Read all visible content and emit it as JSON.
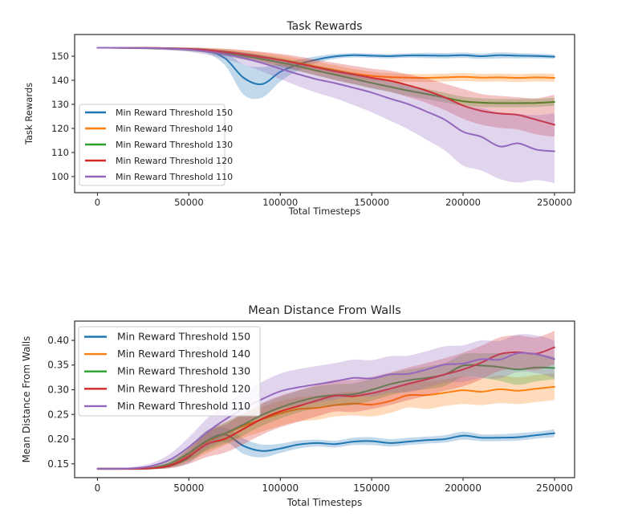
{
  "page": {
    "background": "#ffffff",
    "text_color": "#262626",
    "spine_color": "#3b3b3b",
    "legend_border": "#cccccc"
  },
  "chart_data": [
    {
      "type": "line",
      "title": "Task Rewards",
      "xlabel": "Total Timesteps",
      "ylabel": "Task Rewards",
      "xlim": [
        -12500,
        261000
      ],
      "ylim": [
        93.3,
        159
      ],
      "xticks": [
        0,
        50000,
        100000,
        150000,
        200000,
        250000
      ],
      "yticks": [
        100,
        110,
        120,
        130,
        140,
        150
      ],
      "ytick_decimals": 0,
      "grid": false,
      "legend_position": "lower left",
      "band_opacity": 0.28,
      "x": [
        0,
        10000,
        20000,
        30000,
        40000,
        50000,
        60000,
        70000,
        80000,
        90000,
        100000,
        110000,
        120000,
        130000,
        140000,
        150000,
        160000,
        170000,
        180000,
        190000,
        200000,
        210000,
        220000,
        230000,
        240000,
        250000
      ],
      "series": [
        {
          "name": "Min Reward Threshold 150",
          "color": "#1f77b4",
          "y": [
            153.5,
            153.5,
            153.5,
            153.4,
            153.3,
            153.0,
            152.3,
            149.0,
            141.0,
            138.4,
            143.5,
            146.6,
            148.6,
            149.9,
            150.4,
            150.2,
            150.0,
            150.3,
            150.3,
            150.2,
            150.4,
            150.0,
            150.4,
            150.2,
            150.1,
            149.8
          ],
          "lo": [
            153.2,
            153.2,
            153.1,
            153.0,
            152.8,
            152.3,
            151.2,
            146.0,
            134.0,
            132.8,
            139.5,
            144.2,
            147.2,
            148.9,
            149.5,
            149.3,
            149.1,
            149.4,
            149.2,
            149.1,
            149.3,
            148.9,
            149.1,
            149.1,
            149.1,
            148.9
          ],
          "hi": [
            153.8,
            153.8,
            153.8,
            153.7,
            153.6,
            153.5,
            153.2,
            151.5,
            146.5,
            145.5,
            147.0,
            148.6,
            150.0,
            150.9,
            151.3,
            151.1,
            150.9,
            151.2,
            151.4,
            151.3,
            151.5,
            151.1,
            151.6,
            151.3,
            151.1,
            150.7
          ]
        },
        {
          "name": "Min Reward Threshold 140",
          "color": "#ff7f0e",
          "y": [
            153.5,
            153.5,
            153.4,
            153.3,
            153.2,
            153.0,
            152.6,
            151.9,
            151.0,
            149.9,
            148.5,
            147.1,
            145.6,
            144.2,
            142.8,
            141.8,
            141.3,
            141.1,
            141.0,
            141.2,
            141.4,
            141.1,
            141.2,
            141.0,
            141.2,
            141.0
          ],
          "lo": [
            153.2,
            153.1,
            153.0,
            152.9,
            152.7,
            152.4,
            151.7,
            150.7,
            149.5,
            148.1,
            146.5,
            145.0,
            143.5,
            142.1,
            140.8,
            139.9,
            139.5,
            139.4,
            139.3,
            139.5,
            139.7,
            139.4,
            139.5,
            139.3,
            139.5,
            139.3
          ],
          "hi": [
            153.8,
            153.8,
            153.8,
            153.7,
            153.6,
            153.5,
            153.3,
            153.0,
            152.4,
            151.6,
            150.4,
            149.1,
            147.7,
            146.2,
            144.7,
            143.6,
            142.9,
            142.7,
            142.6,
            142.8,
            143.0,
            142.7,
            142.8,
            142.6,
            142.8,
            142.7
          ]
        },
        {
          "name": "Min Reward Threshold 130",
          "color": "#2ca02c",
          "y": [
            153.5,
            153.5,
            153.4,
            153.3,
            153.1,
            152.8,
            152.2,
            151.3,
            150.1,
            148.8,
            147.4,
            145.8,
            144.0,
            142.3,
            140.6,
            138.9,
            137.3,
            135.7,
            134.3,
            132.8,
            131.3,
            130.7,
            130.5,
            130.5,
            130.6,
            131.0
          ],
          "lo": [
            153.2,
            153.1,
            153.0,
            152.8,
            152.5,
            152.1,
            151.3,
            150.0,
            148.6,
            147.1,
            145.5,
            143.8,
            141.9,
            140.1,
            138.3,
            136.6,
            135.1,
            133.5,
            132.1,
            130.8,
            129.4,
            128.9,
            128.8,
            128.8,
            128.9,
            129.4
          ],
          "hi": [
            153.8,
            153.8,
            153.8,
            153.7,
            153.6,
            153.5,
            153.1,
            152.5,
            151.6,
            150.5,
            149.3,
            147.8,
            146.1,
            144.5,
            142.9,
            141.2,
            139.5,
            137.9,
            136.5,
            134.8,
            133.2,
            132.5,
            132.2,
            132.2,
            132.3,
            132.7
          ]
        },
        {
          "name": "Min Reward Threshold 120",
          "color": "#d62728",
          "y": [
            153.5,
            153.5,
            153.4,
            153.4,
            153.2,
            153.0,
            152.5,
            151.7,
            150.7,
            149.6,
            148.4,
            146.9,
            145.3,
            143.7,
            142.4,
            141.0,
            139.8,
            137.9,
            135.7,
            132.9,
            129.5,
            127.3,
            126.2,
            125.6,
            123.6,
            121.5
          ],
          "lo": [
            153.2,
            153.2,
            153.1,
            153.0,
            152.7,
            152.3,
            151.5,
            150.3,
            148.8,
            147.3,
            145.7,
            143.9,
            142.0,
            140.1,
            138.5,
            136.8,
            135.3,
            133.0,
            130.6,
            127.6,
            124.0,
            121.5,
            120.2,
            119.5,
            117.5,
            116.5
          ],
          "hi": [
            153.8,
            153.8,
            153.8,
            153.8,
            153.7,
            153.6,
            153.4,
            153.1,
            152.5,
            151.8,
            151.0,
            149.9,
            148.5,
            147.2,
            146.0,
            144.8,
            144.0,
            142.4,
            140.8,
            138.6,
            136.4,
            134.3,
            133.5,
            133.0,
            132.5,
            134.0
          ]
        },
        {
          "name": "Min Reward Threshold 110",
          "color": "#9467bd",
          "y": [
            153.5,
            153.5,
            153.4,
            153.3,
            153.1,
            152.7,
            151.9,
            150.8,
            149.2,
            147.2,
            144.8,
            142.5,
            140.4,
            138.8,
            136.9,
            134.9,
            132.4,
            130.1,
            127.0,
            123.6,
            118.6,
            116.5,
            112.5,
            113.8,
            111.2,
            110.5
          ],
          "lo": [
            153.2,
            153.1,
            153.0,
            152.8,
            152.4,
            151.8,
            150.6,
            148.8,
            146.5,
            143.7,
            140.5,
            137.5,
            134.8,
            132.5,
            129.7,
            126.7,
            123.2,
            119.6,
            115.3,
            110.8,
            104.6,
            102.5,
            99.0,
            97.5,
            98.5,
            97.3
          ],
          "hi": [
            153.8,
            153.8,
            153.8,
            153.7,
            153.6,
            153.4,
            153.0,
            152.4,
            151.5,
            150.3,
            148.6,
            146.9,
            145.3,
            144.1,
            142.7,
            141.1,
            139.3,
            137.7,
            135.5,
            132.9,
            129.5,
            128.5,
            126.5,
            126.0,
            125.5,
            126.3
          ]
        }
      ]
    },
    {
      "type": "line",
      "title": "Mean Distance From Walls",
      "xlabel": "Total Timesteps",
      "ylabel": "Mean Distance From Walls",
      "xlim": [
        -12500,
        261000
      ],
      "ylim": [
        0.122,
        0.439
      ],
      "xticks": [
        0,
        50000,
        100000,
        150000,
        200000,
        250000
      ],
      "yticks": [
        0.15,
        0.2,
        0.25,
        0.3,
        0.35,
        0.4
      ],
      "ytick_decimals": 2,
      "grid": false,
      "legend_position": "upper left",
      "band_opacity": 0.28,
      "x": [
        0,
        10000,
        20000,
        30000,
        40000,
        50000,
        60000,
        70000,
        80000,
        90000,
        100000,
        110000,
        120000,
        130000,
        140000,
        150000,
        160000,
        170000,
        180000,
        190000,
        200000,
        210000,
        220000,
        230000,
        240000,
        250000
      ],
      "series": [
        {
          "name": "Min Reward Threshold 150",
          "color": "#1f77b4",
          "y": [
            0.14,
            0.14,
            0.14,
            0.141,
            0.146,
            0.163,
            0.197,
            0.209,
            0.186,
            0.176,
            0.181,
            0.189,
            0.192,
            0.19,
            0.195,
            0.196,
            0.192,
            0.195,
            0.198,
            0.2,
            0.207,
            0.203,
            0.203,
            0.204,
            0.208,
            0.212
          ],
          "lo": [
            0.138,
            0.138,
            0.138,
            0.139,
            0.142,
            0.152,
            0.18,
            0.194,
            0.17,
            0.163,
            0.172,
            0.181,
            0.185,
            0.183,
            0.188,
            0.188,
            0.185,
            0.188,
            0.191,
            0.193,
            0.199,
            0.196,
            0.196,
            0.197,
            0.201,
            0.204
          ],
          "hi": [
            0.142,
            0.142,
            0.142,
            0.143,
            0.151,
            0.174,
            0.214,
            0.223,
            0.201,
            0.189,
            0.191,
            0.197,
            0.199,
            0.197,
            0.203,
            0.204,
            0.2,
            0.203,
            0.205,
            0.208,
            0.215,
            0.21,
            0.21,
            0.212,
            0.215,
            0.22
          ]
        },
        {
          "name": "Min Reward Threshold 140",
          "color": "#ff7f0e",
          "y": [
            0.14,
            0.14,
            0.14,
            0.142,
            0.149,
            0.168,
            0.193,
            0.211,
            0.227,
            0.24,
            0.252,
            0.261,
            0.263,
            0.269,
            0.272,
            0.27,
            0.277,
            0.289,
            0.289,
            0.294,
            0.299,
            0.296,
            0.301,
            0.298,
            0.302,
            0.306
          ],
          "lo": [
            0.138,
            0.138,
            0.138,
            0.139,
            0.143,
            0.155,
            0.172,
            0.188,
            0.203,
            0.215,
            0.227,
            0.236,
            0.239,
            0.246,
            0.248,
            0.246,
            0.253,
            0.264,
            0.261,
            0.267,
            0.271,
            0.269,
            0.273,
            0.271,
            0.275,
            0.279
          ],
          "hi": [
            0.142,
            0.142,
            0.142,
            0.145,
            0.156,
            0.182,
            0.215,
            0.235,
            0.252,
            0.265,
            0.277,
            0.285,
            0.288,
            0.293,
            0.296,
            0.294,
            0.301,
            0.315,
            0.317,
            0.321,
            0.327,
            0.323,
            0.329,
            0.325,
            0.33,
            0.333
          ]
        },
        {
          "name": "Min Reward Threshold 130",
          "color": "#2ca02c",
          "y": [
            0.14,
            0.14,
            0.14,
            0.142,
            0.151,
            0.172,
            0.197,
            0.212,
            0.23,
            0.249,
            0.264,
            0.276,
            0.285,
            0.289,
            0.291,
            0.3,
            0.311,
            0.319,
            0.324,
            0.331,
            0.349,
            0.349,
            0.346,
            0.341,
            0.345,
            0.344
          ],
          "lo": [
            0.138,
            0.138,
            0.138,
            0.139,
            0.145,
            0.158,
            0.177,
            0.191,
            0.208,
            0.227,
            0.242,
            0.254,
            0.263,
            0.267,
            0.269,
            0.278,
            0.289,
            0.297,
            0.301,
            0.308,
            0.326,
            0.324,
            0.318,
            0.31,
            0.317,
            0.321
          ],
          "hi": [
            0.142,
            0.142,
            0.142,
            0.145,
            0.158,
            0.186,
            0.218,
            0.233,
            0.252,
            0.271,
            0.286,
            0.298,
            0.307,
            0.311,
            0.313,
            0.322,
            0.333,
            0.341,
            0.347,
            0.354,
            0.372,
            0.374,
            0.374,
            0.372,
            0.373,
            0.367
          ]
        },
        {
          "name": "Min Reward Threshold 120",
          "color": "#d62728",
          "y": [
            0.14,
            0.14,
            0.14,
            0.141,
            0.147,
            0.165,
            0.19,
            0.201,
            0.221,
            0.241,
            0.256,
            0.267,
            0.278,
            0.288,
            0.287,
            0.293,
            0.302,
            0.312,
            0.321,
            0.331,
            0.341,
            0.355,
            0.372,
            0.376,
            0.373,
            0.386
          ],
          "lo": [
            0.138,
            0.138,
            0.138,
            0.139,
            0.141,
            0.15,
            0.164,
            0.173,
            0.19,
            0.209,
            0.224,
            0.235,
            0.246,
            0.256,
            0.255,
            0.261,
            0.269,
            0.279,
            0.288,
            0.298,
            0.307,
            0.321,
            0.338,
            0.342,
            0.34,
            0.352
          ],
          "hi": [
            0.142,
            0.142,
            0.142,
            0.144,
            0.153,
            0.181,
            0.217,
            0.23,
            0.252,
            0.273,
            0.288,
            0.299,
            0.31,
            0.32,
            0.32,
            0.326,
            0.335,
            0.345,
            0.354,
            0.364,
            0.375,
            0.389,
            0.406,
            0.41,
            0.406,
            0.419
          ]
        },
        {
          "name": "Min Reward Threshold 110",
          "color": "#9467bd",
          "y": [
            0.14,
            0.14,
            0.141,
            0.146,
            0.159,
            0.184,
            0.214,
            0.24,
            0.262,
            0.281,
            0.297,
            0.305,
            0.311,
            0.317,
            0.324,
            0.323,
            0.331,
            0.332,
            0.341,
            0.351,
            0.353,
            0.362,
            0.361,
            0.374,
            0.372,
            0.362
          ],
          "lo": [
            0.138,
            0.138,
            0.139,
            0.141,
            0.148,
            0.164,
            0.186,
            0.208,
            0.228,
            0.246,
            0.261,
            0.268,
            0.274,
            0.28,
            0.287,
            0.286,
            0.294,
            0.295,
            0.304,
            0.314,
            0.316,
            0.324,
            0.323,
            0.336,
            0.334,
            0.324
          ],
          "hi": [
            0.142,
            0.142,
            0.144,
            0.152,
            0.171,
            0.204,
            0.242,
            0.272,
            0.296,
            0.316,
            0.333,
            0.342,
            0.348,
            0.354,
            0.361,
            0.36,
            0.368,
            0.369,
            0.378,
            0.388,
            0.39,
            0.4,
            0.399,
            0.412,
            0.41,
            0.4
          ]
        }
      ]
    }
  ]
}
